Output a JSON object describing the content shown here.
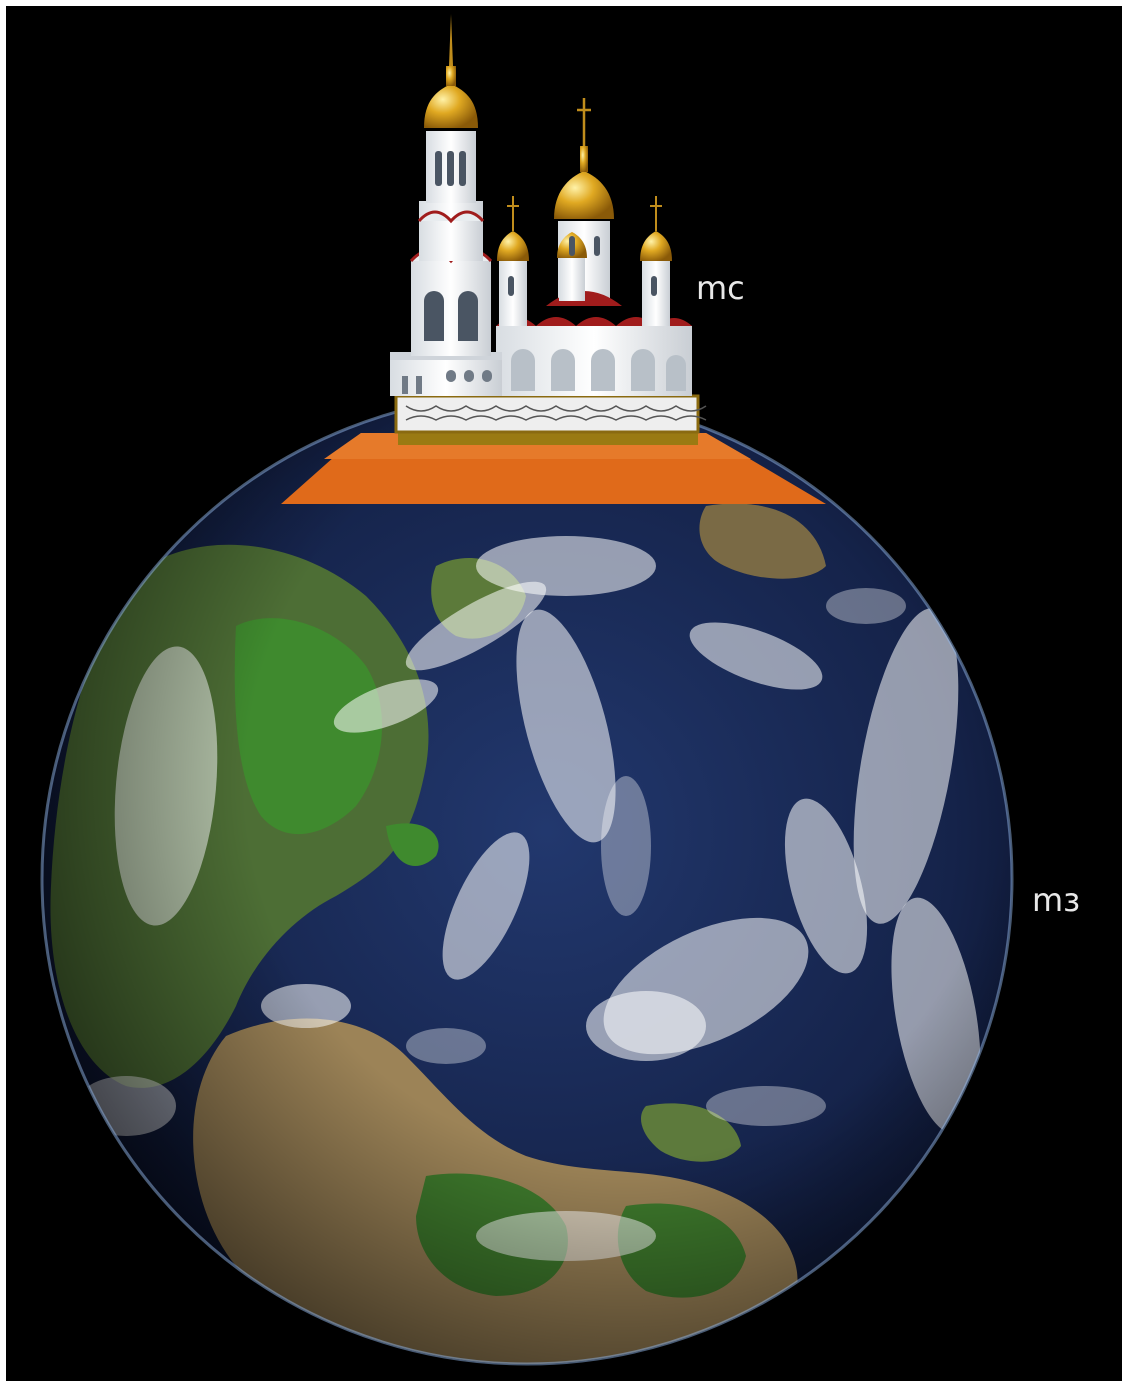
{
  "labels": {
    "church": "mc",
    "earth": "mз"
  },
  "colors": {
    "background": "#000000",
    "platform": "#e06a1a",
    "ocean": "#1a2b5c",
    "gold": "#d9a21f"
  },
  "icons": {
    "church": "orthodox-church-icon",
    "earth": "earth-globe-icon"
  }
}
